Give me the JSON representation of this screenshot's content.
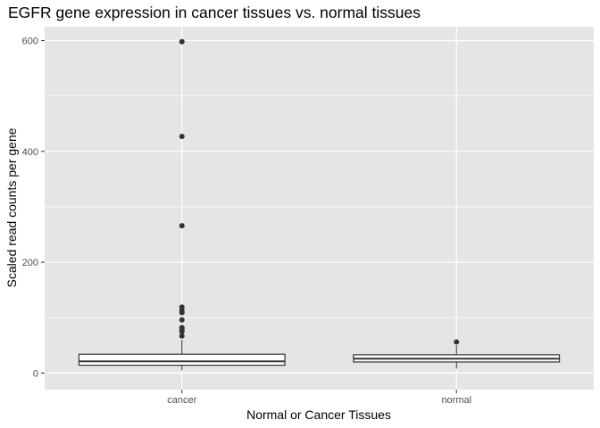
{
  "chart_data": {
    "type": "boxplot",
    "title": "EGFR gene expression in cancer tissues vs. normal tissues",
    "xlabel": "Normal or Cancer Tissues",
    "ylabel": "Scaled read counts per gene",
    "categories": [
      "cancer",
      "normal"
    ],
    "ylim": [
      -30,
      625
    ],
    "yticks": [
      0,
      200,
      400,
      600
    ],
    "grid": true,
    "colors": {
      "panel": "#e5e5e5",
      "grid": "#ffffff",
      "box_fill": "#ffffff",
      "box_stroke": "#333333",
      "outlier": "#333333"
    },
    "boxes": [
      {
        "category": "cancer",
        "whisker_low": 5,
        "q1": 14,
        "median": 21,
        "q3": 34,
        "whisker_high": 60,
        "outliers": [
          67,
          75,
          79,
          82,
          96,
          109,
          113,
          119,
          266,
          427,
          598
        ]
      },
      {
        "category": "normal",
        "whisker_low": 8,
        "q1": 20,
        "median": 26,
        "q3": 33,
        "whisker_high": 50,
        "outliers": [
          56
        ]
      }
    ]
  }
}
